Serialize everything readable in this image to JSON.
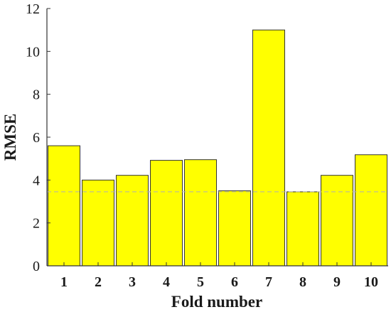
{
  "chart_data": {
    "type": "bar",
    "categories": [
      "1",
      "2",
      "3",
      "4",
      "5",
      "6",
      "7",
      "8",
      "9",
      "10"
    ],
    "values": [
      5.6,
      4.0,
      4.22,
      4.92,
      4.95,
      3.5,
      11.0,
      3.45,
      4.22,
      5.18
    ],
    "reference_line": 3.45,
    "xlabel": "Fold number",
    "ylabel": "RMSE",
    "ylim": [
      0,
      12
    ],
    "yticks": [
      0,
      2,
      4,
      6,
      8,
      10,
      12
    ],
    "grid": false,
    "colors": {
      "bar_fill": "#ffff00",
      "bar_stroke": "#333333",
      "axis": "#333333",
      "reference_line": "#b0b0b0"
    }
  }
}
